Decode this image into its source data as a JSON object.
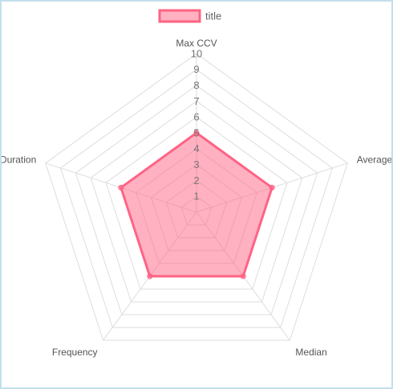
{
  "chart_data": {
    "type": "radar",
    "categories": [
      "Max CCV",
      "Average",
      "Median",
      "Frequency",
      "Duration"
    ],
    "series": [
      {
        "name": "title",
        "color": "#ff6384",
        "values": [
          5,
          5,
          5,
          5,
          5
        ]
      }
    ],
    "rlim": [
      0,
      10
    ],
    "rticks": [
      1,
      2,
      3,
      4,
      5,
      6,
      7,
      8,
      9,
      10
    ],
    "grid": true,
    "legend": "top"
  }
}
